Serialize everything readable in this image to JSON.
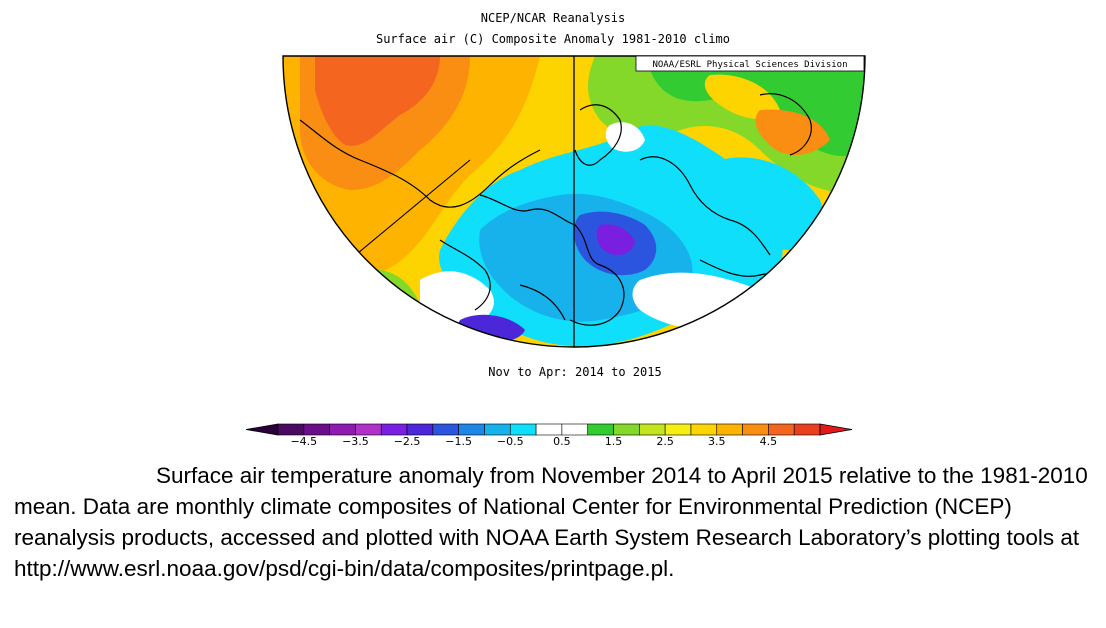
{
  "map": {
    "title": "NCEP/NCAR Reanalysis",
    "subtitle": "Surface air (C) Composite Anomaly 1981-2010 climo",
    "credit": "NOAA/ESRL Physical Sciences Division",
    "period_label": "Nov to Apr: 2014 to 2015",
    "projection": "north polar stereographic (half hemisphere)"
  },
  "colorbar": {
    "tick_labels": [
      "−4.5",
      "−3.5",
      "−2.5",
      "−1.5",
      "−0.5",
      "0.5",
      "1.5",
      "2.5",
      "3.5",
      "4.5"
    ],
    "colors": [
      "#4b0a61",
      "#6a0e8a",
      "#8f1bb0",
      "#b131c9",
      "#7a1ee0",
      "#4b27d9",
      "#2c55df",
      "#1e86e6",
      "#17b2ec",
      "#10dffb",
      "#ffffff",
      "#ffffff",
      "#32cc32",
      "#84d82a",
      "#c4e41f",
      "#f5ef15",
      "#fed400",
      "#fdb300",
      "#fa8e12",
      "#f4661f",
      "#e8401f"
    ],
    "min_arrow_color": "#2a003a",
    "max_arrow_color": "#e31a1c"
  },
  "caption": {
    "text": "Surface air temperature anomaly from November 2014 to April 2015 relative to the 1981-2010 mean. Data are monthly climate composites of National Center for Environmental Prediction (NCEP) reanalysis products, accessed and plotted with NOAA Earth System Research Laboratory’s plotting tools at http://www.esrl.noaa.gov/psd/cgi-bin/data/composites/printpage.pl."
  }
}
